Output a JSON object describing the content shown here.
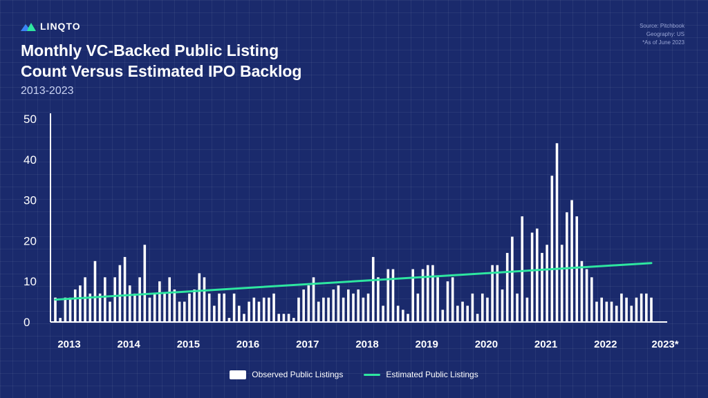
{
  "brand": {
    "name": "LINQTO",
    "icon": "mountain-logo-icon"
  },
  "header": {
    "title_line1": "Monthly VC-Backed Public Listing",
    "title_line2": "Count Versus Estimated IPO Backlog",
    "subtitle": "2013-2023"
  },
  "source": {
    "line1": "Source: Pitchbook",
    "line2": "Geography: US",
    "line3": "*As of June 2023"
  },
  "legend": {
    "observed": "Observed Public Listings",
    "estimated": "Estimated Public Listings"
  },
  "colors": {
    "background": "#1a2a6c",
    "bars": "#ffffff",
    "trend": "#2ee6a0"
  },
  "chart_data": {
    "type": "bar",
    "title": "Monthly VC-Backed Public Listing Count Versus Estimated IPO Backlog",
    "xlabel": "",
    "ylabel": "",
    "ylim": [
      0,
      50
    ],
    "yticks": [
      0,
      10,
      20,
      30,
      40,
      50
    ],
    "xtick_labels": [
      "2013",
      "2014",
      "2015",
      "2016",
      "2017",
      "2018",
      "2019",
      "2020",
      "2021",
      "2022",
      "2023*"
    ],
    "series": [
      {
        "name": "Observed Public Listings",
        "type": "bar",
        "values": [
          6,
          1,
          6,
          6,
          8,
          9,
          11,
          7,
          15,
          7,
          11,
          5,
          11,
          14,
          16,
          9,
          7,
          11,
          19,
          6,
          7,
          10,
          7,
          11,
          8,
          5,
          5,
          7,
          8,
          12,
          11,
          7,
          4,
          7,
          7,
          1,
          7,
          4,
          2,
          5,
          6,
          5,
          6,
          6,
          7,
          2,
          2,
          2,
          1,
          6,
          8,
          9,
          11,
          5,
          6,
          6,
          8,
          9,
          6,
          8,
          7,
          8,
          6,
          7,
          16,
          11,
          4,
          13,
          13,
          4,
          3,
          2,
          13,
          7,
          13,
          14,
          14,
          11,
          3,
          10,
          11,
          4,
          5,
          4,
          7,
          2,
          7,
          6,
          14,
          14,
          8,
          17,
          21,
          7,
          26,
          6,
          22,
          23,
          17,
          19,
          36,
          44,
          19,
          27,
          30,
          26,
          15,
          13,
          11,
          5,
          6,
          5,
          5,
          4,
          7,
          6,
          4,
          6,
          7,
          7,
          6
        ]
      },
      {
        "name": "Estimated Public Listings",
        "type": "line",
        "x": [
          0,
          120
        ],
        "values": [
          5.5,
          14.5
        ]
      }
    ]
  }
}
